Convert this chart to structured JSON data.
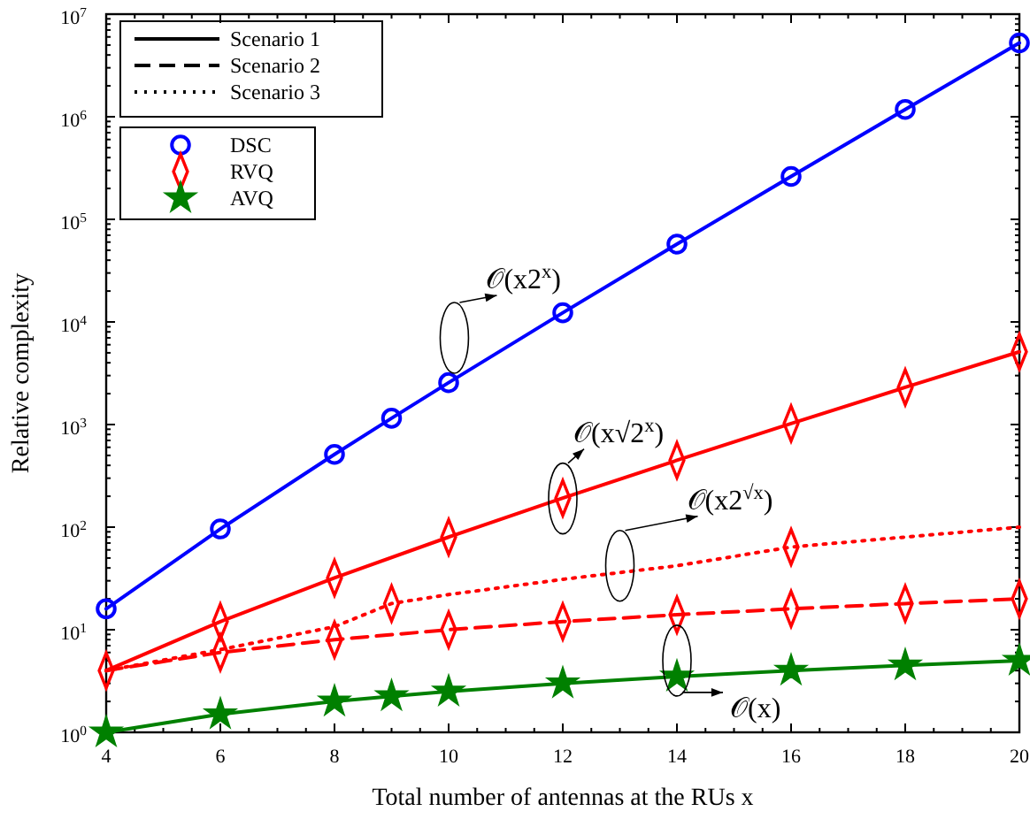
{
  "chart_data": {
    "type": "line",
    "xlabel": "Total number of antennas at the RUs x",
    "ylabel": "Relative complexity",
    "xlim": [
      4,
      20
    ],
    "xticks": [
      4,
      6,
      8,
      10,
      12,
      14,
      16,
      18,
      20
    ],
    "ylim": [
      1,
      10000000
    ],
    "log": true,
    "yticks": [
      {
        "value": 1,
        "label": "10$^{0}$"
      },
      {
        "value": 10,
        "label": "10$^{1}$"
      },
      {
        "value": 100,
        "label": "10$^{2}$"
      },
      {
        "value": 1000,
        "label": "10$^{3}$"
      },
      {
        "value": 10000,
        "label": "10$^{4}$"
      },
      {
        "value": 100000,
        "label": "10$^{5}$"
      },
      {
        "value": 1000000,
        "label": "10$^{6}$"
      },
      {
        "value": 10000000,
        "label": "10$^{7}$"
      }
    ],
    "legend": "top left",
    "grid": false,
    "series": [
      {
        "color": "#0000ff",
        "line_style": "solid",
        "x": [
          4,
          6,
          8,
          9,
          10,
          12,
          14,
          16,
          18,
          20
        ],
        "values": [
          16,
          96,
          512,
          1152,
          2560,
          12288,
          57344,
          262144,
          1179648,
          5242880
        ]
      },
      {
        "color": "#ff0000",
        "line_style": "solid",
        "x": [
          4,
          6,
          8,
          10,
          12,
          14,
          16,
          18,
          20
        ],
        "values": [
          4,
          12,
          32,
          80,
          192,
          448,
          1024,
          2304,
          5120
        ]
      },
      {
        "color": "#ff0000",
        "line_style": "dashed",
        "x": [
          4,
          6,
          8,
          10,
          12,
          14,
          16,
          18,
          20
        ],
        "values": [
          4,
          6,
          8,
          10,
          12,
          14,
          16,
          18,
          20
        ]
      },
      {
        "color": "#ff0000",
        "line_style": "dotted",
        "x": [
          4,
          6,
          8,
          9,
          10,
          12,
          14,
          16,
          18,
          20
        ],
        "values": [
          4,
          6.4,
          10.7,
          18,
          22,
          31,
          42,
          64,
          80,
          100
        ]
      },
      {
        "color": "#008000",
        "line_style": "solid",
        "x": [
          4,
          6,
          8,
          9,
          10,
          12,
          14,
          16,
          18,
          20
        ],
        "values": [
          1,
          1.5,
          2,
          2.25,
          2.5,
          3,
          3.5,
          4,
          4.5,
          5
        ]
      },
      {
        "type": "scatter",
        "name": "DSC",
        "color": "#0000ff",
        "marker": "circle",
        "x": [
          4,
          6,
          8,
          9,
          10,
          12,
          14,
          16,
          18,
          20
        ],
        "values": [
          16,
          96,
          512,
          1152,
          2560,
          12288,
          57344,
          262144,
          1179648,
          5242880
        ]
      },
      {
        "type": "scatter",
        "name": "RVQ",
        "color": "#ff0000",
        "marker": "diamond",
        "x": [
          4,
          6,
          8,
          10,
          12,
          14,
          16,
          18,
          20,
          6,
          8,
          10,
          12,
          14,
          16,
          18,
          20,
          9,
          16
        ],
        "values": [
          4,
          12,
          32,
          80,
          192,
          448,
          1024,
          2304,
          5120,
          6,
          8,
          10,
          12,
          14,
          16,
          18,
          20,
          18,
          64
        ]
      },
      {
        "type": "scatter",
        "name": "AVQ",
        "color": "#008000",
        "marker": "star",
        "x": [
          4,
          6,
          8,
          9,
          10,
          12,
          14,
          16,
          18,
          20
        ],
        "values": [
          1,
          1.5,
          2,
          2.25,
          2.5,
          3,
          3.5,
          4,
          4.5,
          5
        ]
      }
    ],
    "annotations": [
      "Scenario 1",
      "Scenario 2",
      "Scenario 3",
      {
        "text": "𝒪(x2$^{x}$)",
        "x": 10.1,
        "y": 7000
      },
      {
        "text": "𝒪(x√2$^{x}$)",
        "x": 12,
        "y": 190
      },
      {
        "text": "𝒪(x2$^{√x}$)",
        "x": 13,
        "y": 42
      },
      {
        "text": "𝒪(x)",
        "x": 14,
        "y": 5
      }
    ]
  }
}
